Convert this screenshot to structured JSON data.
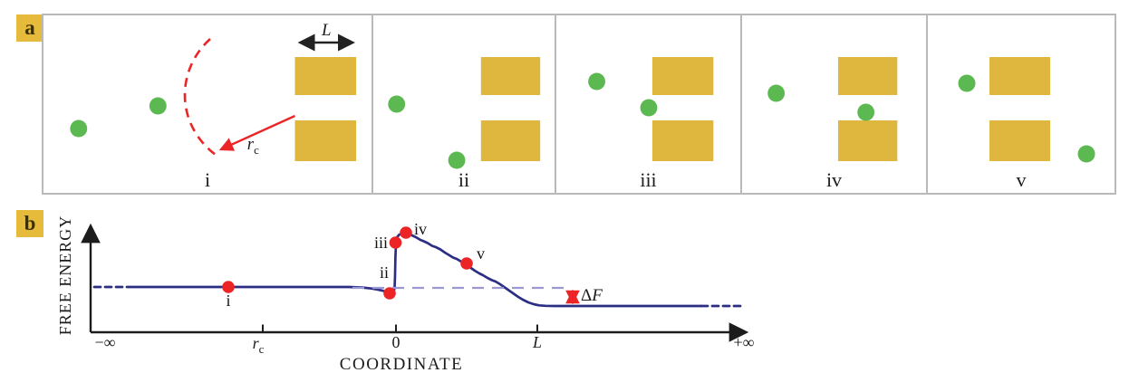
{
  "colors": {
    "gold": "#DFB73E",
    "green": "#5CB850",
    "red": "#EC2426",
    "curve_navy": "#2B2E83",
    "baseline_lavender": "#9C98D4",
    "polymer_dark": "#5F7CC3",
    "polymer_light": "#C2CFEC",
    "panel_border": "#B9B9B9",
    "panel_label_bg": "#E6BB3C",
    "panel_label_text": "#3C3000",
    "axis": "#1C1C1C"
  },
  "panel_a": {
    "label": "a",
    "pore_width_label": "L",
    "capture_radius_label": {
      "base": "r",
      "sub": "c"
    },
    "stages": [
      "i",
      "ii",
      "iii",
      "iv",
      "v"
    ]
  },
  "panel_b": {
    "label": "b",
    "delta_f_label": {
      "delta": "Δ",
      "variable": "F"
    }
  },
  "chart_data": {
    "type": "line",
    "qualitative": true,
    "xlabel": "COORDINATE",
    "ylabel": "FREE ENERGY",
    "x_ticks": [
      {
        "text": "−∞"
      },
      {
        "base": "r",
        "sub": "c"
      },
      {
        "text": "0"
      },
      {
        "text": "L"
      },
      {
        "text": "+∞"
      }
    ],
    "delta_annotation": "ΔF",
    "segments": [
      {
        "name": "energy-curve-left-dashed",
        "class": "curve-solid curve-dashed",
        "points": [
          [
            44,
            85
          ],
          [
            88,
            85
          ]
        ]
      },
      {
        "name": "energy-curve-main",
        "class": "curve-solid",
        "points": [
          [
            88,
            85
          ],
          [
            200,
            85
          ],
          [
            280,
            85
          ],
          [
            325,
            85
          ],
          [
            340,
            85.6
          ],
          [
            350,
            86.7
          ],
          [
            357,
            87.9
          ],
          [
            362,
            89
          ],
          [
            366,
            90.3
          ],
          [
            369,
            91.5
          ],
          [
            371,
            92
          ],
          [
            373,
            91.7
          ],
          [
            374.5,
            90.3
          ],
          [
            375.5,
            86
          ],
          [
            376,
            72
          ],
          [
            376.4,
            52
          ],
          [
            377,
            38
          ],
          [
            378,
            30.5
          ],
          [
            380.5,
            27.2
          ],
          [
            384,
            25.7
          ],
          [
            388,
            25.2
          ],
          [
            394,
            27.6
          ],
          [
            399,
            30
          ],
          [
            404,
            33
          ],
          [
            408,
            34.6
          ],
          [
            412,
            36.5
          ],
          [
            417,
            39.6
          ],
          [
            421,
            41
          ],
          [
            426,
            43.5
          ],
          [
            431,
            47
          ],
          [
            436,
            50
          ],
          [
            440,
            52.5
          ],
          [
            444,
            54
          ],
          [
            449,
            57
          ],
          [
            454,
            60
          ],
          [
            459,
            63.5
          ],
          [
            464,
            67
          ],
          [
            469,
            70
          ],
          [
            473,
            72
          ],
          [
            478,
            75
          ],
          [
            483,
            77.5
          ],
          [
            487,
            79
          ],
          [
            492,
            82
          ],
          [
            497,
            85.5
          ],
          [
            502,
            89
          ],
          [
            507,
            92.5
          ],
          [
            512,
            96
          ],
          [
            517,
            99
          ],
          [
            523,
            102
          ],
          [
            529,
            104
          ],
          [
            535,
            105.3
          ],
          [
            542,
            105.8
          ],
          [
            552,
            106
          ],
          [
            714,
            106
          ]
        ]
      },
      {
        "name": "energy-curve-right-dashed",
        "class": "curve-solid curve-dashed",
        "points": [
          [
            714,
            106
          ],
          [
            761,
            106
          ]
        ]
      },
      {
        "name": "reference-baseline-dashed",
        "class": "baseline-dashed",
        "points": [
          [
            329,
            86
          ],
          [
            568,
            86
          ]
        ]
      }
    ],
    "points": [
      {
        "label": "i",
        "x": 192,
        "y": 85,
        "label_x": 192,
        "label_y": 106,
        "anchor": "middle"
      },
      {
        "label": "ii",
        "x": 370,
        "y": 92,
        "label_x": 364,
        "label_y": 75,
        "anchor": "middle"
      },
      {
        "label": "iii",
        "x": 376.5,
        "y": 36,
        "label_x": 368,
        "label_y": 42,
        "anchor": "end"
      },
      {
        "label": "iv",
        "x": 388,
        "y": 25,
        "label_x": 397,
        "label_y": 27,
        "anchor": "start"
      },
      {
        "label": "v",
        "x": 455,
        "y": 59,
        "label_x": 466,
        "label_y": 54,
        "anchor": "start"
      }
    ]
  }
}
